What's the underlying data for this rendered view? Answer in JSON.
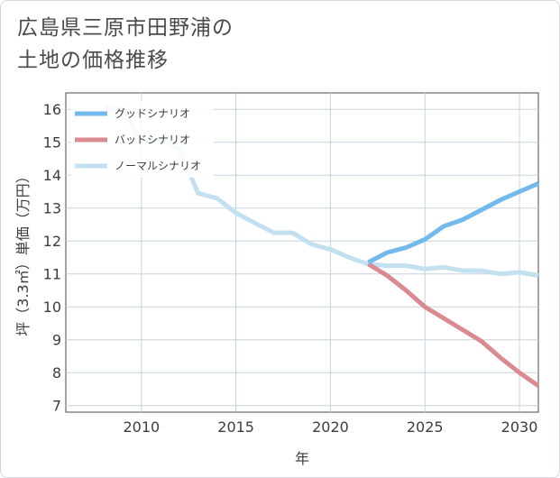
{
  "title_line1": "広島県三原市田野浦の",
  "title_line2": "土地の価格推移",
  "chart_data": {
    "type": "line",
    "xlabel": "年",
    "ylabel": "坪（3.3㎡）単価（万円）",
    "xlim": [
      2006,
      2031
    ],
    "ylim": [
      6.8,
      16.5
    ],
    "x_ticks": [
      2010,
      2015,
      2020,
      2025,
      2030
    ],
    "y_ticks": [
      7,
      8,
      9,
      10,
      11,
      12,
      13,
      14,
      15,
      16
    ],
    "grid": true,
    "legend_position": "top-left",
    "series": [
      {
        "name": "グッドシナリオ",
        "color": "#74b9ec",
        "x": [
          2022,
          2023,
          2024,
          2025,
          2026,
          2027,
          2028,
          2029,
          2030,
          2031
        ],
        "y": [
          11.35,
          11.65,
          11.8,
          12.05,
          12.45,
          12.65,
          12.95,
          13.25,
          13.5,
          13.75
        ]
      },
      {
        "name": "バッドシナリオ",
        "color": "#dc8a92",
        "x": [
          2022,
          2023,
          2024,
          2025,
          2026,
          2027,
          2028,
          2029,
          2030,
          2031
        ],
        "y": [
          11.3,
          10.95,
          10.5,
          10.0,
          9.65,
          9.3,
          8.95,
          8.45,
          8.0,
          7.6
        ]
      },
      {
        "name": "ノーマルシナリオ",
        "color": "#c2e0ef",
        "x": [
          2008,
          2009,
          2010,
          2011,
          2012,
          2013,
          2014,
          2015,
          2016,
          2017,
          2018,
          2019,
          2020,
          2021,
          2022,
          2023,
          2024,
          2025,
          2026,
          2027,
          2028,
          2029,
          2030,
          2031
        ],
        "y": [
          16.1,
          16.0,
          15.0,
          15.1,
          14.8,
          13.45,
          13.3,
          12.85,
          12.55,
          12.25,
          12.25,
          11.9,
          11.75,
          11.5,
          11.3,
          11.25,
          11.25,
          11.15,
          11.2,
          11.1,
          11.1,
          11.0,
          11.05,
          10.95
        ]
      }
    ]
  }
}
